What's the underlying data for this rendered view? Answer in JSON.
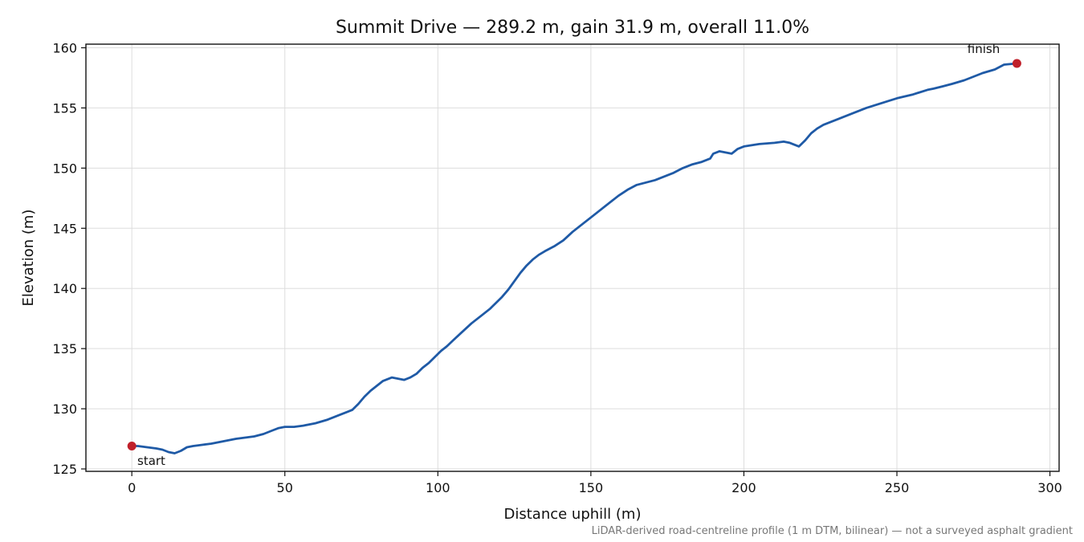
{
  "chart_data": {
    "type": "line",
    "title": "Summit Drive — 289.2 m, gain 31.9 m, overall 11.0%",
    "xlabel": "Distance uphill (m)",
    "ylabel": "Elevation (m)",
    "xlim": [
      -15,
      303
    ],
    "ylim": [
      124.8,
      160.3
    ],
    "xticks": [
      0,
      50,
      100,
      150,
      200,
      250,
      300
    ],
    "yticks": [
      125,
      130,
      135,
      140,
      145,
      150,
      155,
      160
    ],
    "grid": true,
    "line_color": "#1f5aa6",
    "marker_color": "#c0202a",
    "series": [
      {
        "x": [
          0,
          2,
          5,
          8,
          10,
          12,
          14,
          16,
          18,
          20,
          23,
          26,
          30,
          34,
          37,
          40,
          43,
          46,
          48,
          50,
          53,
          56,
          60,
          64,
          67,
          70,
          72,
          74,
          76,
          78,
          80,
          82,
          85,
          87,
          89,
          91,
          93,
          95,
          97,
          99,
          101,
          103,
          105,
          108,
          111,
          114,
          117,
          119,
          121,
          123,
          125,
          127,
          129,
          131,
          133,
          135,
          138,
          141,
          144,
          147,
          150,
          153,
          156,
          159,
          162,
          165,
          168,
          171,
          174,
          177,
          180,
          183,
          186,
          189,
          190,
          192,
          194,
          196,
          198,
          200,
          205,
          210,
          213,
          215,
          217,
          218,
          220,
          222,
          224,
          226,
          230,
          235,
          240,
          245,
          250,
          255,
          260,
          262,
          265,
          268,
          272,
          275,
          278,
          282,
          285,
          289.2
        ],
        "y": [
          126.9,
          126.9,
          126.8,
          126.7,
          126.6,
          126.4,
          126.3,
          126.5,
          126.8,
          126.9,
          127.0,
          127.1,
          127.3,
          127.5,
          127.6,
          127.7,
          127.9,
          128.2,
          128.4,
          128.5,
          128.5,
          128.6,
          128.8,
          129.1,
          129.4,
          129.7,
          129.9,
          130.4,
          131.0,
          131.5,
          131.9,
          132.3,
          132.6,
          132.5,
          132.4,
          132.6,
          132.9,
          133.4,
          133.8,
          134.3,
          134.8,
          135.2,
          135.7,
          136.4,
          137.1,
          137.7,
          138.3,
          138.8,
          139.3,
          139.9,
          140.6,
          141.3,
          141.9,
          142.4,
          142.8,
          143.1,
          143.5,
          144.0,
          144.7,
          145.3,
          145.9,
          146.5,
          147.1,
          147.7,
          148.2,
          148.6,
          148.8,
          149.0,
          149.3,
          149.6,
          150.0,
          150.3,
          150.5,
          150.8,
          151.2,
          151.4,
          151.3,
          151.2,
          151.6,
          151.8,
          152.0,
          152.1,
          152.2,
          152.1,
          151.9,
          151.8,
          152.3,
          152.9,
          153.3,
          153.6,
          154.0,
          154.5,
          155.0,
          155.4,
          155.8,
          156.1,
          156.5,
          156.6,
          156.8,
          157.0,
          157.3,
          157.6,
          157.9,
          158.2,
          158.6,
          158.7
        ]
      }
    ],
    "annotations": [
      {
        "text": "start",
        "x": 0,
        "y": 126.9
      },
      {
        "text": "finish",
        "x": 289.2,
        "y": 158.7
      }
    ],
    "footnote": "LiDAR-derived road-centreline profile (1 m DTM, bilinear) — not a surveyed asphalt gradient"
  }
}
